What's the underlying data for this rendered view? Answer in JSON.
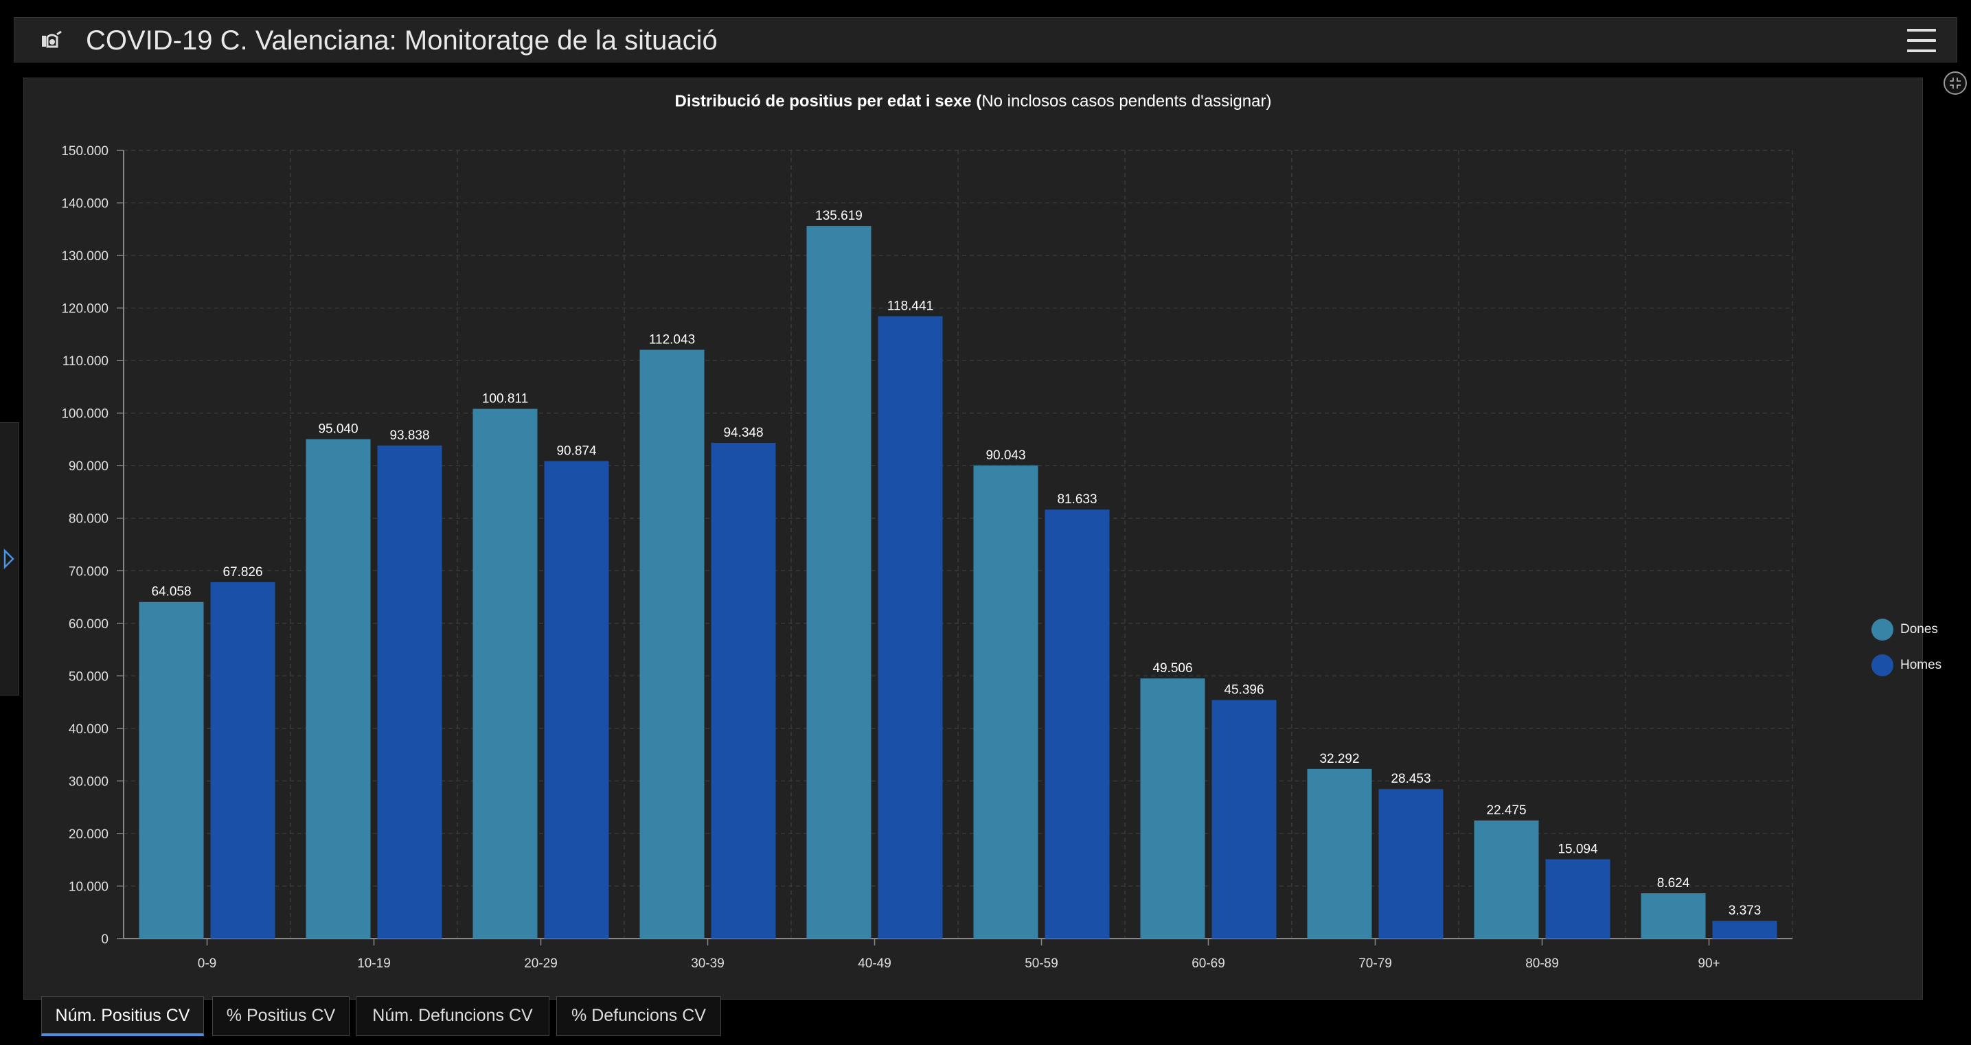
{
  "header": {
    "title": "COVID-19 C. Valenciana: Monitoratge de la situació"
  },
  "chart": {
    "title_bold": "Distribució de positius per edat i sexe (",
    "title_normal": "No inclosos casos pendents d'assignar)"
  },
  "chart_data": {
    "type": "bar",
    "categories": [
      "0-9",
      "10-19",
      "20-29",
      "30-39",
      "40-49",
      "50-59",
      "60-69",
      "70-79",
      "80-89",
      "90+"
    ],
    "series": [
      {
        "name": "Dones",
        "color": "#3884a6",
        "values": [
          64058,
          95040,
          100811,
          112043,
          135619,
          90043,
          49506,
          32292,
          22475,
          8624
        ]
      },
      {
        "name": "Homes",
        "color": "#1b50a8",
        "values": [
          67826,
          93838,
          90874,
          94348,
          118441,
          81633,
          45396,
          28453,
          15094,
          3373
        ]
      }
    ],
    "ylim": [
      0,
      150000
    ],
    "yticks": [
      0,
      10000,
      20000,
      30000,
      40000,
      50000,
      60000,
      70000,
      80000,
      90000,
      100000,
      110000,
      120000,
      130000,
      140000,
      150000
    ],
    "grid": true,
    "legend": "right",
    "number_format": "thousands separator ."
  },
  "tabs": [
    {
      "label": "Núm. Positius CV",
      "active": true
    },
    {
      "label": "% Positius CV",
      "active": false
    },
    {
      "label": "Núm. Defuncions CV",
      "active": false
    },
    {
      "label": "% Defuncions CV",
      "active": false
    }
  ]
}
